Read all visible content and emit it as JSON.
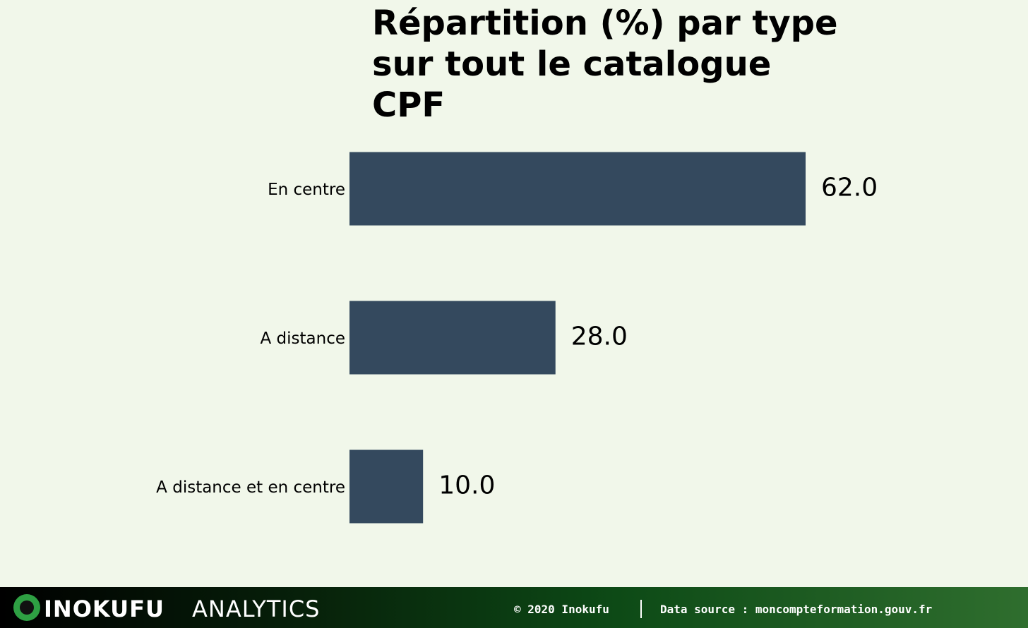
{
  "chart_data": {
    "type": "hbar",
    "title": "Répartition (%) par type sur tout le catalogue CPF",
    "categories": [
      "En centre",
      "A distance",
      "A distance et en centre"
    ],
    "values": [
      62,
      28,
      10
    ],
    "value_labels": [
      "62.0",
      "28.0",
      "10.0"
    ],
    "color": "#34495e"
  },
  "footer": {
    "brand": "INOKUFU",
    "brand_suffix": "ANALYTICS",
    "copyright": "© 2020 Inokufu",
    "source": "Data source : moncompteformation.gouv.fr"
  }
}
